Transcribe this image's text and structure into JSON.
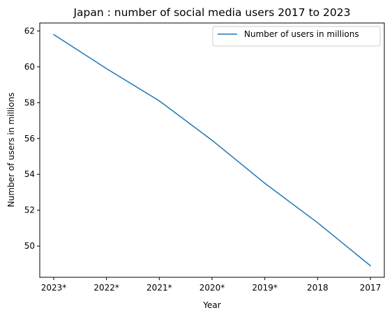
{
  "chart_data": {
    "type": "line",
    "title": "Japan : number of social media users 2017 to 2023",
    "xlabel": "Year",
    "ylabel": "Number of users in millions",
    "categories": [
      "2023*",
      "2022*",
      "2021*",
      "2020*",
      "2019*",
      "2018",
      "2017"
    ],
    "series": [
      {
        "name": "Number of users in millions",
        "values": [
          61.8,
          59.9,
          58.1,
          55.9,
          53.5,
          51.3,
          48.9
        ],
        "color": "#1f77b4"
      }
    ],
    "y_ticks": [
      50,
      52,
      54,
      56,
      58,
      60,
      62
    ],
    "ylim": [
      48.255,
      62.445
    ],
    "grid": false,
    "legend_position": "top-right"
  }
}
